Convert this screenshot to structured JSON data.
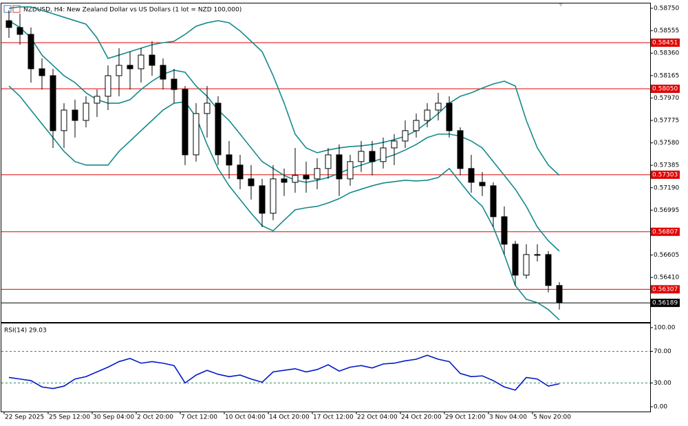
{
  "chart_data": {
    "type": "candlestick",
    "title": "NZDUSD, H4:  New Zealand Dollar vs US Dollars (1 lot = NZD 100,000)",
    "categories": [
      "22 Sep 2025",
      null,
      null,
      null,
      "25 Sep 12:00",
      null,
      null,
      null,
      "30 Sep 04:00",
      null,
      null,
      null,
      "2 Oct 20:00",
      null,
      null,
      null,
      "7 Oct 12:00",
      null,
      null,
      null,
      "10 Oct 04:00",
      null,
      null,
      null,
      "14 Oct 20:00",
      null,
      null,
      null,
      "17 Oct 12:00",
      null,
      null,
      null,
      "22 Oct 04:00",
      null,
      null,
      null,
      "24 Oct 20:00",
      null,
      null,
      null,
      "29 Oct 12:00",
      null,
      null,
      null,
      "3 Nov 04:00",
      null,
      null,
      null,
      "5 Nov 20:00",
      null,
      null
    ],
    "open": [
      0.58642,
      0.58583,
      0.58523,
      0.58224,
      0.58164,
      0.57686,
      0.57865,
      0.57775,
      0.57925,
      0.57985,
      0.58164,
      0.58254,
      0.58224,
      0.58343,
      0.58254,
      0.58134,
      0.58044,
      0.57476,
      0.57835,
      0.57925,
      0.57476,
      0.57387,
      0.57267,
      0.57207,
      0.56968,
      0.57267,
      0.57237,
      0.57297,
      0.57267,
      0.57357,
      0.57476,
      0.57267,
      0.57417,
      0.57506,
      0.57417,
      0.57536,
      0.57596,
      0.57686,
      0.57775,
      0.57865,
      0.57925,
      0.57686,
      0.57357,
      0.57237,
      0.57207,
      0.56938,
      0.56699,
      0.5643,
      0.56609,
      0.56609,
      0.5634
    ],
    "high": [
      0.58732,
      0.58702,
      0.58583,
      0.58314,
      0.58224,
      0.57925,
      0.57955,
      0.57985,
      0.58044,
      0.58254,
      0.58403,
      0.58373,
      0.58403,
      0.58463,
      0.58314,
      0.58224,
      0.58074,
      0.57925,
      0.58074,
      0.57985,
      0.57596,
      0.57476,
      0.57387,
      0.57267,
      0.57387,
      0.57357,
      0.57536,
      0.57417,
      0.57446,
      0.57536,
      0.57566,
      0.57476,
      0.57596,
      0.57596,
      0.57626,
      0.57656,
      0.57775,
      0.57835,
      0.57925,
      0.58015,
      0.57985,
      0.57715,
      0.57476,
      0.57327,
      0.57237,
      0.57028,
      0.56729,
      0.56699,
      0.56699,
      0.56639,
      0.5637
    ],
    "low": [
      0.58493,
      0.58433,
      0.58104,
      0.58044,
      0.57536,
      0.57536,
      0.57626,
      0.57715,
      0.57805,
      0.57865,
      0.57985,
      0.58044,
      0.58104,
      0.58164,
      0.58044,
      0.57925,
      0.57387,
      0.57417,
      0.57626,
      0.57387,
      0.57267,
      0.57177,
      0.57088,
      0.56848,
      0.56908,
      0.57118,
      0.57147,
      0.57147,
      0.57177,
      0.57267,
      0.57118,
      0.57207,
      0.57327,
      0.57297,
      0.57357,
      0.57387,
      0.57536,
      0.57626,
      0.57715,
      0.57775,
      0.57626,
      0.57297,
      0.57147,
      0.57118,
      0.56848,
      0.56609,
      0.5634,
      0.564,
      0.56549,
      0.5628,
      0.56131
    ],
    "close": [
      0.58583,
      0.58523,
      0.58224,
      0.58164,
      0.57686,
      0.57865,
      0.57775,
      0.57925,
      0.57985,
      0.58164,
      0.58254,
      0.58224,
      0.58343,
      0.58254,
      0.58134,
      0.58044,
      0.57476,
      0.57835,
      0.57925,
      0.57476,
      0.57387,
      0.57267,
      0.57207,
      0.56968,
      0.57267,
      0.57237,
      0.57297,
      0.57267,
      0.57357,
      0.57476,
      0.57267,
      0.57417,
      0.57506,
      0.57417,
      0.57536,
      0.57596,
      0.57686,
      0.57775,
      0.57865,
      0.57925,
      0.57686,
      0.57357,
      0.57237,
      0.57207,
      0.56938,
      0.56699,
      0.5643,
      0.56609,
      0.56609,
      0.5634,
      0.56191
    ],
    "up_color": "#ffffff",
    "down_color": "#000000",
    "ylim": [
      0.56022,
      0.58792
    ],
    "yticks": [
      {
        "value": 0.5875,
        "label": "0.58750"
      },
      {
        "value": 0.58555,
        "label": "0.58555"
      },
      {
        "value": 0.5836,
        "label": "0.58360"
      },
      {
        "value": 0.58165,
        "label": "0.58165"
      },
      {
        "value": 0.5797,
        "label": "0.57970"
      },
      {
        "value": 0.57775,
        "label": "0.57775"
      },
      {
        "value": 0.5758,
        "label": "0.57580"
      },
      {
        "value": 0.57385,
        "label": "0.57385"
      },
      {
        "value": 0.5719,
        "label": "0.57190"
      },
      {
        "value": 0.56995,
        "label": "0.56995"
      },
      {
        "value": 0.56605,
        "label": "0.56605"
      },
      {
        "value": 0.5641,
        "label": "0.56410"
      }
    ],
    "levels": [
      {
        "value": 0.58451,
        "label": "0.58451"
      },
      {
        "value": 0.5805,
        "label": "0.58050"
      },
      {
        "value": 0.57303,
        "label": "0.57303"
      },
      {
        "value": 0.56807,
        "label": "0.56807"
      },
      {
        "value": 0.56307,
        "label": "0.56307"
      }
    ],
    "level_color": "#e00000",
    "current_price": {
      "value": 0.56189,
      "label": "0.56189"
    },
    "bands": {
      "color": "#13898a",
      "upper": [
        0.5875,
        0.58762,
        0.58762,
        0.58732,
        0.58702,
        0.58672,
        0.58642,
        0.58612,
        0.58493,
        0.58314,
        0.58343,
        0.58373,
        0.58403,
        0.58433,
        0.58451,
        0.58463,
        0.58523,
        0.58594,
        0.58624,
        0.58642,
        0.58624,
        0.58553,
        0.58463,
        0.58373,
        0.58164,
        0.57925,
        0.57656,
        0.57536,
        0.57494,
        0.57518,
        0.57536,
        0.57548,
        0.57554,
        0.57566,
        0.57584,
        0.57608,
        0.57638,
        0.57686,
        0.57757,
        0.57835,
        0.57925,
        0.57985,
        0.58015,
        0.58056,
        0.58092,
        0.58116,
        0.58074,
        0.57775,
        0.57536,
        0.57387,
        0.57297
      ],
      "middle": [
        0.58642,
        0.58583,
        0.58493,
        0.58343,
        0.58254,
        0.58164,
        0.58104,
        0.58015,
        0.57955,
        0.57925,
        0.57925,
        0.57955,
        0.58044,
        0.58116,
        0.58176,
        0.58212,
        0.58194,
        0.58074,
        0.57985,
        0.57865,
        0.57775,
        0.57656,
        0.57536,
        0.57417,
        0.57357,
        0.57297,
        0.57255,
        0.57237,
        0.57255,
        0.57279,
        0.57315,
        0.57357,
        0.57387,
        0.57417,
        0.57446,
        0.57476,
        0.57518,
        0.57566,
        0.57626,
        0.57656,
        0.57656,
        0.57638,
        0.57596,
        0.57536,
        0.57417,
        0.57297,
        0.57177,
        0.57028,
        0.56848,
        0.56729,
        0.56639
      ],
      "lower": [
        0.58074,
        0.57985,
        0.57865,
        0.57745,
        0.57626,
        0.57506,
        0.57417,
        0.57387,
        0.57387,
        0.57387,
        0.57506,
        0.57596,
        0.57686,
        0.57775,
        0.57865,
        0.57925,
        0.57937,
        0.57805,
        0.57566,
        0.57357,
        0.57207,
        0.57088,
        0.56968,
        0.5686,
        0.56815,
        0.56908,
        0.56998,
        0.57016,
        0.57028,
        0.57058,
        0.57095,
        0.57147,
        0.57177,
        0.57207,
        0.57231,
        0.57243,
        0.57255,
        0.57249,
        0.57255,
        0.57279,
        0.57357,
        0.57237,
        0.57118,
        0.57028,
        0.56848,
        0.56609,
        0.5634,
        0.5622,
        0.56191,
        0.56131,
        0.56041
      ]
    },
    "rsi": {
      "title": "RSI(14) 29.03",
      "color": "#0018c8",
      "values": [
        37,
        35,
        33,
        25,
        23,
        26,
        35,
        38,
        44,
        50,
        57,
        61,
        55,
        57,
        55,
        52,
        30,
        40,
        46,
        41,
        38,
        40,
        35,
        31,
        44,
        46,
        48,
        44,
        47,
        53,
        45,
        50,
        52,
        49,
        54,
        55,
        58,
        60,
        65,
        60,
        57,
        42,
        38,
        39,
        33,
        25,
        21,
        37,
        35,
        26,
        29.03
      ],
      "ylim": [
        -6.1,
        105.2
      ],
      "yticks": [
        {
          "value": 100,
          "label": "100.00"
        },
        {
          "value": 70,
          "label": "70.00"
        },
        {
          "value": 30,
          "label": "30.00"
        },
        {
          "value": 0,
          "label": "0.00"
        }
      ],
      "levels": [
        70,
        30
      ],
      "level_color": "#2e8b57"
    }
  }
}
